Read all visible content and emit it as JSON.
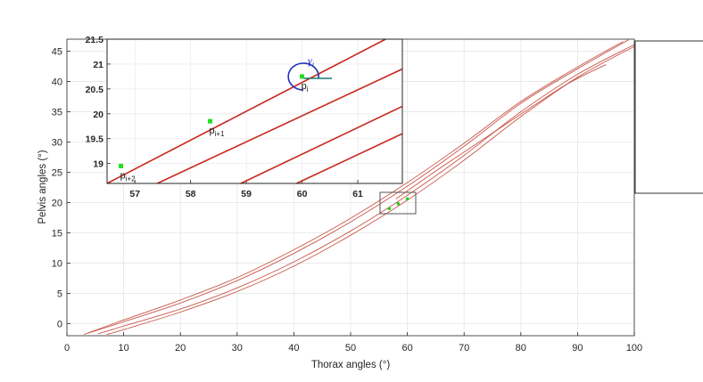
{
  "chart_data": {
    "type": "line",
    "xlabel": "Thorax angles (°)",
    "ylabel": "Pelvis angles (°)",
    "xlim": [
      0,
      100
    ],
    "ylim": [
      -2,
      47
    ],
    "xticks": [
      "0",
      "10",
      "20",
      "30",
      "40",
      "50",
      "60",
      "70",
      "80",
      "90",
      "100"
    ],
    "yticks": [
      "0",
      "5",
      "10",
      "15",
      "20",
      "25",
      "30",
      "35",
      "40",
      "45"
    ],
    "grid": true,
    "line_color": "#c0392b",
    "series": [
      {
        "x": [
          3,
          10,
          20,
          30,
          40,
          50,
          60,
          70,
          80,
          90,
          98
        ],
        "y": [
          -1.8,
          0.6,
          3.9,
          7.6,
          12.2,
          17.4,
          23.3,
          29.8,
          36.7,
          42.4,
          46.6
        ]
      },
      {
        "x": [
          3.6,
          10,
          20,
          30,
          40,
          50,
          60,
          70,
          80,
          90,
          99
        ],
        "y": [
          -1.6,
          0.3,
          3.4,
          7.1,
          11.6,
          16.8,
          22.7,
          29.3,
          36.4,
          42.1,
          46.9
        ]
      },
      {
        "x": [
          5.5,
          10,
          20,
          30,
          40,
          50,
          60,
          70,
          80,
          90,
          100
        ],
        "y": [
          -1.7,
          -0.4,
          2.4,
          5.9,
          10.2,
          15.3,
          21.2,
          27.8,
          35.0,
          41.2,
          46.1
        ]
      },
      {
        "x": [
          7,
          10,
          20,
          30,
          40,
          50,
          60,
          70,
          80,
          90,
          100
        ],
        "y": [
          -1.8,
          -1.0,
          1.9,
          5.3,
          9.5,
          14.6,
          20.4,
          27.0,
          34.2,
          40.7,
          45.8
        ]
      },
      {
        "x": [
          58,
          65,
          72,
          80,
          88,
          95
        ],
        "y": [
          20.6,
          25.2,
          29.6,
          34.6,
          39.5,
          42.8
        ]
      }
    ],
    "highlight_points": [
      {
        "x": 56.8,
        "y": 19.0,
        "color": "#22cc22"
      },
      {
        "x": 58.4,
        "y": 19.8,
        "color": "#22cc22"
      },
      {
        "x": 60.0,
        "y": 20.6,
        "color": "#22cc22"
      }
    ],
    "inset": {
      "xlim": [
        56.5,
        61.8
      ],
      "ylim": [
        18.6,
        21.5
      ],
      "xticks": [
        "57",
        "58",
        "59",
        "60",
        "61"
      ],
      "yticks": [
        "19",
        "19.5",
        "20",
        "20.5",
        "21",
        "21.5"
      ],
      "lines": [
        {
          "x": [
            56.5,
            61.5
          ],
          "y": [
            18.6,
            21.5
          ]
        },
        {
          "x": [
            57.4,
            61.8
          ],
          "y": [
            18.6,
            20.9
          ]
        },
        {
          "x": [
            58.9,
            61.8
          ],
          "y": [
            18.6,
            20.15
          ]
        },
        {
          "x": [
            59.9,
            61.8
          ],
          "y": [
            18.6,
            19.6
          ]
        }
      ],
      "points": [
        {
          "x": 56.75,
          "y": 18.95
        },
        {
          "x": 58.35,
          "y": 19.85
        },
        {
          "x": 60.0,
          "y": 20.75
        }
      ],
      "point_labels": [
        {
          "main": "p",
          "sub": "i+2"
        },
        {
          "main": "p",
          "sub": "i+1"
        },
        {
          "main": "p",
          "sub": "i"
        }
      ],
      "angle_label": {
        "main": "γ",
        "sub": "i"
      }
    }
  }
}
